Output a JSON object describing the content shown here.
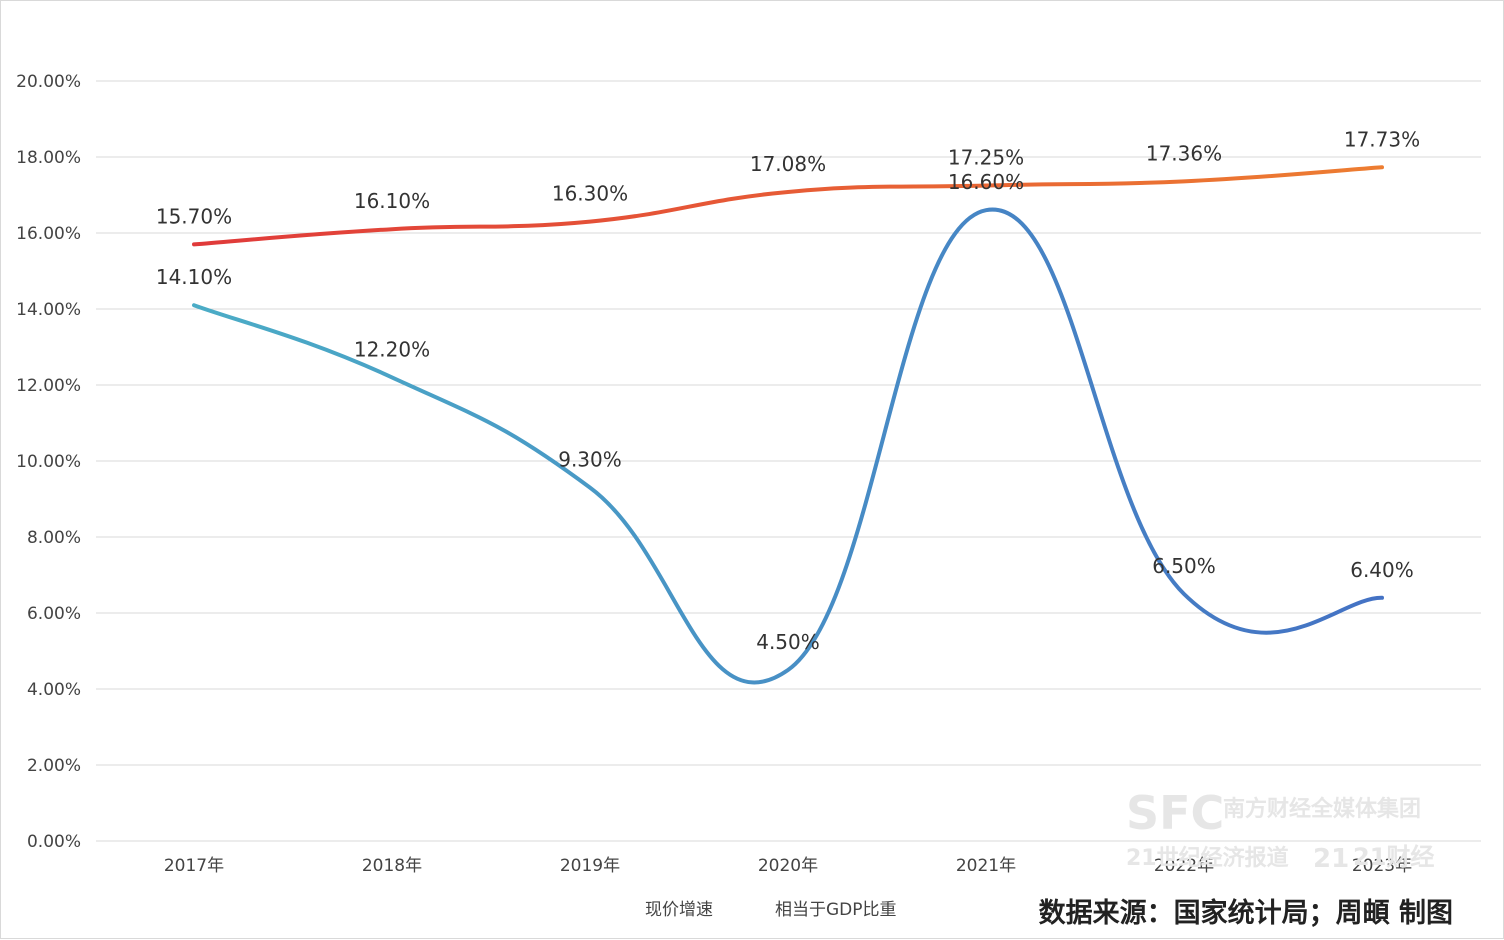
{
  "chart_data": {
    "type": "line",
    "categories": [
      "2017年",
      "2018年",
      "2019年",
      "2020年",
      "2021年",
      "2022年",
      "2023年"
    ],
    "series": [
      {
        "name": "现价增速",
        "values": [
          14.1,
          12.2,
          9.3,
          4.5,
          16.6,
          6.5,
          6.4
        ],
        "labels": [
          "14.10%",
          "12.20%",
          "9.30%",
          "4.50%",
          "16.60%",
          "6.50%",
          "6.40%"
        ],
        "color_start": "#4bacc6",
        "color_end": "#4472c4"
      },
      {
        "name": "相当于GDP比重",
        "values": [
          15.7,
          16.1,
          16.3,
          17.08,
          17.25,
          17.36,
          17.73
        ],
        "labels": [
          "15.70%",
          "16.10%",
          "16.30%",
          "17.08%",
          "17.25%",
          "17.36%",
          "17.73%"
        ],
        "color_start": "#e03a3a",
        "color_end": "#ed7d31"
      }
    ],
    "ylim": [
      0,
      20
    ],
    "yticks": [
      "0.00%",
      "2.00%",
      "4.00%",
      "6.00%",
      "8.00%",
      "10.00%",
      "12.00%",
      "14.00%",
      "16.00%",
      "18.00%",
      "20.00%"
    ],
    "ytick_values": [
      0,
      2,
      4,
      6,
      8,
      10,
      12,
      14,
      16,
      18,
      20
    ],
    "grid": true,
    "legend_position": "bottom-center"
  },
  "source_note": "数据来源：国家统计局；周頔 制图",
  "watermark": {
    "brand": "SFC",
    "group": "南方财经全媒体集团",
    "paper": "21世纪经济报道",
    "badge": "21",
    "finance": "21财经"
  },
  "colors": {
    "grid": "#d9d9d9",
    "text": "#444444"
  }
}
